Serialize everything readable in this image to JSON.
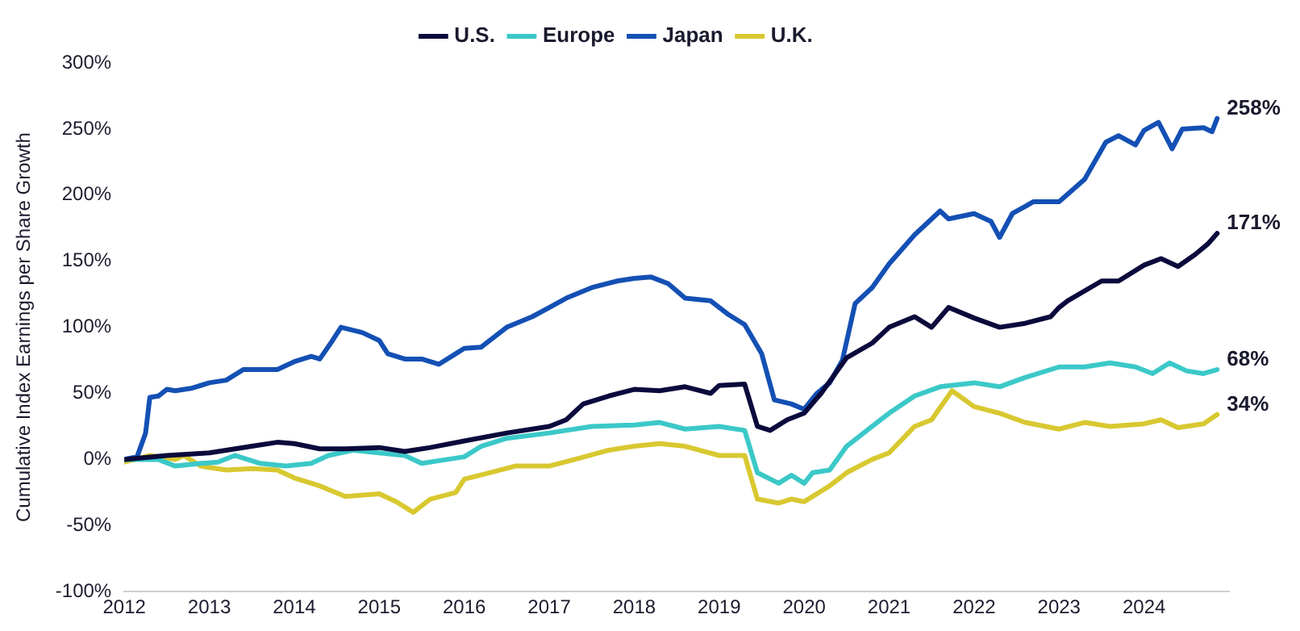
{
  "chart_data": {
    "type": "line",
    "ylabel": "Cumulative Index Earnings per Share Growth",
    "xlim": [
      2012,
      2025
    ],
    "xticks": [
      2012,
      2013,
      2014,
      2015,
      2016,
      2017,
      2018,
      2019,
      2020,
      2021,
      2022,
      2023,
      2024
    ],
    "ylim": [
      -100,
      300
    ],
    "yticks": [
      {
        "value": -100,
        "label": "-100%"
      },
      {
        "value": -50,
        "label": "-50%"
      },
      {
        "value": 0,
        "label": "0%"
      },
      {
        "value": 50,
        "label": "50%"
      },
      {
        "value": 100,
        "label": "100%"
      },
      {
        "value": 150,
        "label": "150%"
      },
      {
        "value": 200,
        "label": "200%"
      },
      {
        "value": 250,
        "label": "250%"
      },
      {
        "value": 300,
        "label": "300%"
      }
    ],
    "grid": false,
    "legend": "top",
    "marker": "none",
    "line_style": "solid",
    "series": [
      {
        "name": "U.S.",
        "color": "#0a0a3c",
        "x": [
          2012,
          2012.5,
          2013,
          2013.5,
          2013.8,
          2014,
          2014.3,
          2014.6,
          2015,
          2015.3,
          2015.6,
          2016,
          2016.5,
          2017,
          2017.2,
          2017.4,
          2017.7,
          2018,
          2018.3,
          2018.6,
          2018.9,
          2019,
          2019.3,
          2019.45,
          2019.6,
          2019.8,
          2020,
          2020.2,
          2020.5,
          2020.8,
          2021,
          2021.3,
          2021.5,
          2021.7,
          2022,
          2022.3,
          2022.6,
          2022.9,
          2023,
          2023.1,
          2023.5,
          2023.7,
          2024,
          2024.2,
          2024.4,
          2024.6,
          2024.75,
          2024.86
        ],
        "values": [
          0,
          3,
          5,
          10,
          13,
          12,
          8,
          8,
          9,
          6,
          9,
          14,
          20,
          25,
          30,
          42,
          48,
          53,
          52,
          55,
          50,
          56,
          57,
          25,
          22,
          30,
          35,
          50,
          77,
          88,
          100,
          108,
          100,
          115,
          107,
          100,
          103,
          108,
          115,
          120,
          135,
          135,
          147,
          152,
          146,
          155,
          163,
          171
        ],
        "value_labels": [
          null,
          null,
          null,
          null,
          null,
          null,
          null,
          null,
          null,
          null,
          null,
          null,
          null,
          null,
          null,
          null,
          null,
          null,
          null,
          null,
          null,
          null,
          null,
          null,
          null,
          null,
          null,
          null,
          null,
          null,
          null,
          null,
          null,
          null,
          null,
          null,
          null,
          null,
          null,
          null,
          null,
          null,
          null,
          null,
          null,
          null,
          null,
          "171%"
        ]
      },
      {
        "name": "Europe",
        "color": "#3cc8c8",
        "x": [
          2012,
          2012.4,
          2012.6,
          2012.9,
          2013.1,
          2013.3,
          2013.6,
          2013.9,
          2014.2,
          2014.4,
          2014.7,
          2015,
          2015.3,
          2015.5,
          2015.8,
          2016,
          2016.2,
          2016.5,
          2017,
          2017.5,
          2018,
          2018.3,
          2018.6,
          2019,
          2019.3,
          2019.45,
          2019.7,
          2019.85,
          2020,
          2020.1,
          2020.3,
          2020.5,
          2020.8,
          2021,
          2021.3,
          2021.6,
          2022,
          2022.3,
          2022.6,
          2023,
          2023.3,
          2023.6,
          2023.9,
          2024.1,
          2024.3,
          2024.5,
          2024.7,
          2024.86
        ],
        "values": [
          0,
          0,
          -5,
          -3,
          -2,
          3,
          -3,
          -5,
          -3,
          3,
          7,
          5,
          3,
          -3,
          0,
          2,
          10,
          16,
          20,
          25,
          26,
          28,
          23,
          25,
          22,
          -10,
          -18,
          -12,
          -18,
          -10,
          -8,
          10,
          25,
          35,
          48,
          55,
          58,
          55,
          62,
          70,
          70,
          73,
          70,
          65,
          73,
          67,
          65,
          68
        ],
        "value_labels": [
          null,
          null,
          null,
          null,
          null,
          null,
          null,
          null,
          null,
          null,
          null,
          null,
          null,
          null,
          null,
          null,
          null,
          null,
          null,
          null,
          null,
          null,
          null,
          null,
          null,
          null,
          null,
          null,
          null,
          null,
          null,
          null,
          null,
          null,
          null,
          null,
          null,
          null,
          null,
          null,
          null,
          null,
          null,
          null,
          null,
          null,
          null,
          "68%"
        ]
      },
      {
        "name": "Japan",
        "color": "#1450b4",
        "x": [
          2012,
          2012.15,
          2012.25,
          2012.3,
          2012.4,
          2012.5,
          2012.6,
          2012.8,
          2013,
          2013.2,
          2013.4,
          2013.6,
          2013.8,
          2014,
          2014.2,
          2014.3,
          2014.45,
          2014.55,
          2014.8,
          2015,
          2015.1,
          2015.3,
          2015.5,
          2015.7,
          2015.9,
          2016,
          2016.2,
          2016.5,
          2016.8,
          2017,
          2017.2,
          2017.5,
          2017.8,
          2018,
          2018.2,
          2018.4,
          2018.6,
          2018.9,
          2019.1,
          2019.3,
          2019.5,
          2019.65,
          2019.85,
          2020,
          2020.15,
          2020.3,
          2020.45,
          2020.6,
          2020.8,
          2021,
          2021.3,
          2021.6,
          2021.7,
          2022,
          2022.2,
          2022.3,
          2022.45,
          2022.7,
          2023,
          2023.3,
          2023.55,
          2023.7,
          2023.9,
          2024,
          2024.17,
          2024.33,
          2024.45,
          2024.7,
          2024.8,
          2024.86
        ],
        "values": [
          0,
          2,
          20,
          47,
          48,
          53,
          52,
          54,
          58,
          60,
          68,
          68,
          68,
          74,
          78,
          76,
          90,
          100,
          96,
          90,
          80,
          76,
          76,
          72,
          80,
          84,
          85,
          100,
          108,
          115,
          122,
          130,
          135,
          137,
          138,
          133,
          122,
          120,
          110,
          102,
          80,
          45,
          42,
          38,
          50,
          58,
          75,
          118,
          130,
          148,
          170,
          188,
          182,
          186,
          180,
          168,
          186,
          195,
          195,
          212,
          240,
          245,
          238,
          249,
          255,
          235,
          250,
          251,
          248,
          258
        ],
        "value_labels": [
          null,
          null,
          null,
          null,
          null,
          null,
          null,
          null,
          null,
          null,
          null,
          null,
          null,
          null,
          null,
          null,
          null,
          null,
          null,
          null,
          null,
          null,
          null,
          null,
          null,
          null,
          null,
          null,
          null,
          null,
          null,
          null,
          null,
          null,
          null,
          null,
          null,
          null,
          null,
          null,
          null,
          null,
          null,
          null,
          null,
          null,
          null,
          null,
          null,
          null,
          null,
          null,
          null,
          null,
          null,
          null,
          null,
          null,
          null,
          null,
          null,
          null,
          null,
          null,
          null,
          null,
          null,
          null,
          null,
          "258%"
        ]
      },
      {
        "name": "U.K.",
        "color": "#d8c830",
        "x": [
          2012,
          2012.3,
          2012.6,
          2012.7,
          2012.9,
          2013.2,
          2013.5,
          2013.8,
          2014,
          2014.3,
          2014.6,
          2015,
          2015.2,
          2015.4,
          2015.6,
          2015.9,
          2016,
          2016.3,
          2016.6,
          2017,
          2017.3,
          2017.7,
          2018,
          2018.3,
          2018.6,
          2019,
          2019.3,
          2019.45,
          2019.7,
          2019.85,
          2020,
          2020.3,
          2020.5,
          2020.8,
          2021,
          2021.3,
          2021.5,
          2021.74,
          2022,
          2022.3,
          2022.6,
          2023,
          2023.3,
          2023.6,
          2024,
          2024.2,
          2024.4,
          2024.7,
          2024.86
        ],
        "values": [
          -2,
          3,
          0,
          3,
          -5,
          -8,
          -7,
          -8,
          -14,
          -20,
          -28,
          -26,
          -32,
          -40,
          -30,
          -25,
          -15,
          -10,
          -5,
          -5,
          0,
          7,
          10,
          12,
          10,
          3,
          3,
          -30,
          -33,
          -30,
          -32,
          -20,
          -10,
          0,
          5,
          25,
          30,
          52,
          40,
          35,
          28,
          23,
          28,
          25,
          27,
          30,
          24,
          27,
          34
        ],
        "value_labels": [
          null,
          null,
          null,
          null,
          null,
          null,
          null,
          null,
          null,
          null,
          null,
          null,
          null,
          null,
          null,
          null,
          null,
          null,
          null,
          null,
          null,
          null,
          null,
          null,
          null,
          null,
          null,
          null,
          null,
          null,
          null,
          null,
          null,
          null,
          null,
          null,
          null,
          null,
          null,
          null,
          null,
          null,
          null,
          null,
          null,
          null,
          null,
          null,
          "34%"
        ]
      }
    ]
  }
}
